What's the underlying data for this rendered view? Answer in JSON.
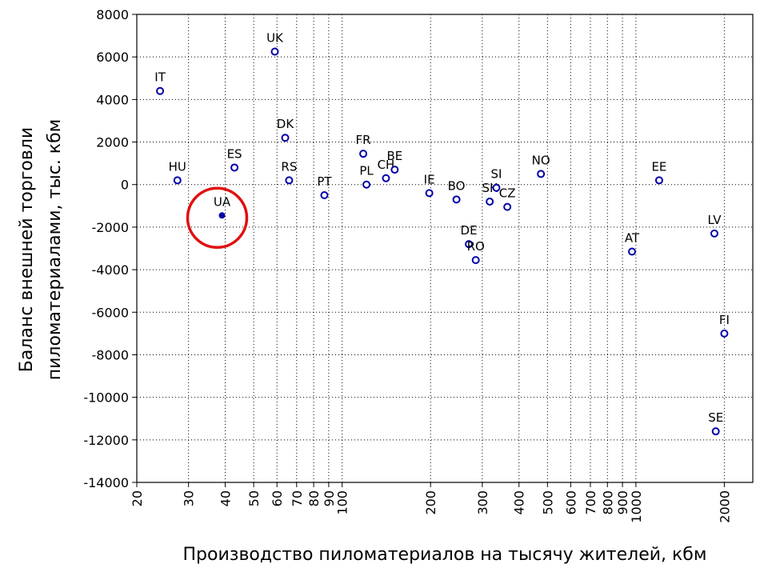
{
  "chart_data": {
    "type": "scatter",
    "title": "",
    "xlabel": "Производство пиломатериалов на тысячу жителей, кбм",
    "ylabel_lines": [
      "Баланс внешней торговли",
      "пиломатериалами, тыс. кбм"
    ],
    "x_scale": "log",
    "xlim": [
      20,
      2500
    ],
    "ylim": [
      -14000,
      8000
    ],
    "x_ticks": [
      20,
      30,
      40,
      50,
      60,
      70,
      80,
      90,
      100,
      200,
      300,
      400,
      500,
      600,
      700,
      800,
      900,
      1000,
      2000
    ],
    "y_ticks": [
      -14000,
      -12000,
      -10000,
      -8000,
      -6000,
      -4000,
      -2000,
      0,
      2000,
      4000,
      6000,
      8000
    ],
    "grid": true,
    "marker_color": "#0000a8",
    "highlight_color": "#e01010",
    "highlight_label": "UA",
    "points": [
      {
        "label": "IT",
        "x": 24,
        "y": 4400
      },
      {
        "label": "HU",
        "x": 27.5,
        "y": 200
      },
      {
        "label": "UA",
        "x": 39,
        "y": -1450
      },
      {
        "label": "ES",
        "x": 43,
        "y": 800
      },
      {
        "label": "UK",
        "x": 59,
        "y": 6250
      },
      {
        "label": "DK",
        "x": 64,
        "y": 2200
      },
      {
        "label": "RS",
        "x": 66,
        "y": 200
      },
      {
        "label": "PT",
        "x": 87,
        "y": -500
      },
      {
        "label": "FR",
        "x": 118,
        "y": 1450
      },
      {
        "label": "PL",
        "x": 121,
        "y": 0
      },
      {
        "label": "CH",
        "x": 141,
        "y": 300
      },
      {
        "label": "BE",
        "x": 151,
        "y": 700
      },
      {
        "label": "IE",
        "x": 198,
        "y": -400
      },
      {
        "label": "BO",
        "x": 245,
        "y": -700
      },
      {
        "label": "DE",
        "x": 270,
        "y": -2800
      },
      {
        "label": "RO",
        "x": 285,
        "y": -3550
      },
      {
        "label": "SK",
        "x": 318,
        "y": -800
      },
      {
        "label": "SI",
        "x": 335,
        "y": -150
      },
      {
        "label": "CZ",
        "x": 365,
        "y": -1050
      },
      {
        "label": "NO",
        "x": 475,
        "y": 500
      },
      {
        "label": "AT",
        "x": 970,
        "y": -3150
      },
      {
        "label": "EE",
        "x": 1200,
        "y": 200
      },
      {
        "label": "LV",
        "x": 1850,
        "y": -2300
      },
      {
        "label": "FI",
        "x": 2000,
        "y": -7000
      },
      {
        "label": "SE",
        "x": 1870,
        "y": -11600
      }
    ]
  }
}
